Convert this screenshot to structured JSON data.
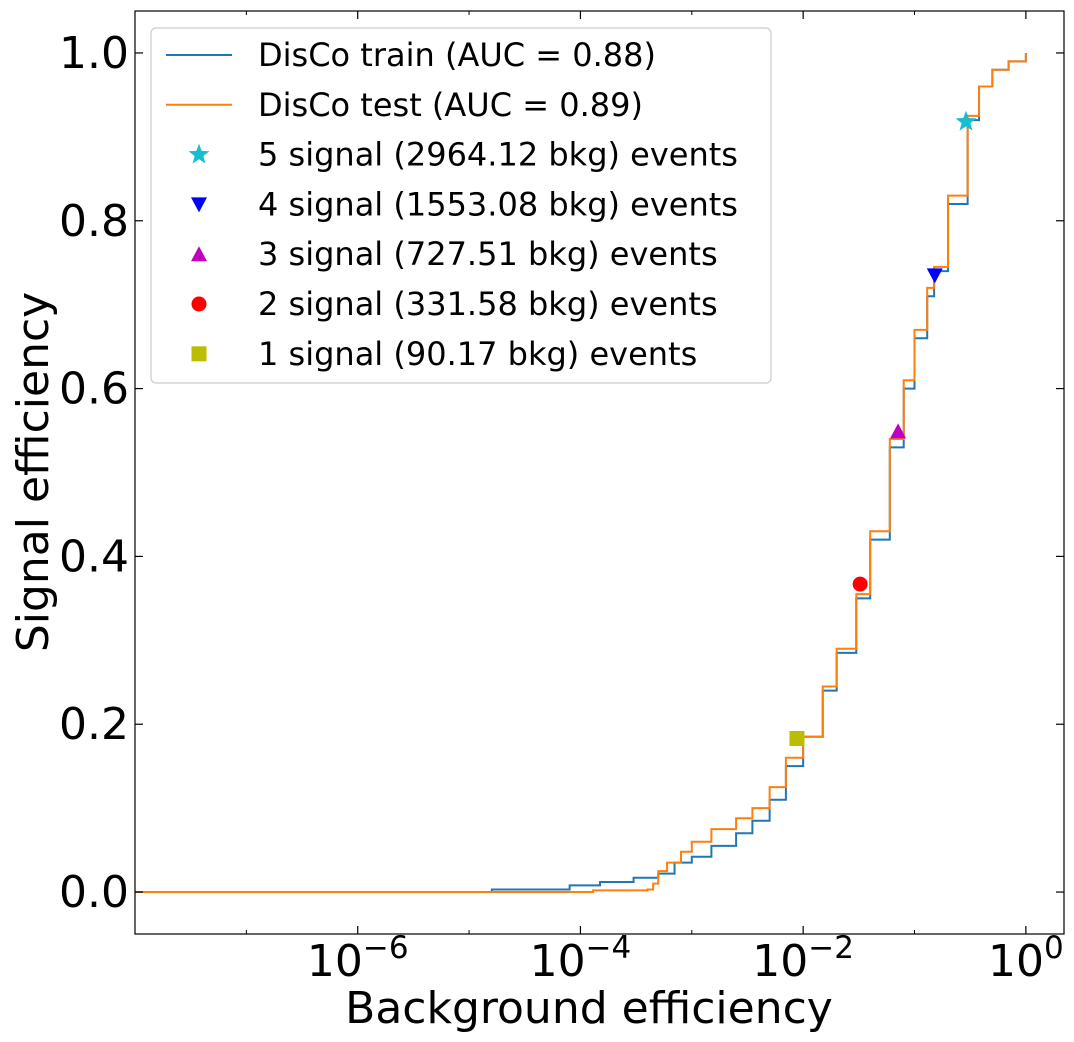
{
  "chart_data": {
    "type": "line",
    "xscale": "log",
    "xlim": [
      1e-08,
      2.2
    ],
    "ylim": [
      -0.05,
      1.05
    ],
    "xlabel": "Background efficiency",
    "ylabel": "Signal efficiency",
    "x_ticks": [
      {
        "value": 1e-06,
        "base": "10",
        "exp": "−6"
      },
      {
        "value": 0.0001,
        "base": "10",
        "exp": "−4"
      },
      {
        "value": 0.01,
        "base": "10",
        "exp": "−2"
      },
      {
        "value": 1,
        "base": "10",
        "exp": "0"
      }
    ],
    "y_ticks": [
      {
        "value": 0.0,
        "label": "0.0"
      },
      {
        "value": 0.2,
        "label": "0.2"
      },
      {
        "value": 0.4,
        "label": "0.4"
      },
      {
        "value": 0.6,
        "label": "0.6"
      },
      {
        "value": 0.8,
        "label": "0.8"
      },
      {
        "value": 1.0,
        "label": "1.0"
      }
    ],
    "grid": false,
    "legend_position": "upper-left",
    "series": [
      {
        "name": "DisCo train (AUC = 0.88)",
        "color": "#1f77b4",
        "points": [
          [
            1e-08,
            0.0
          ],
          [
            1.5e-05,
            0.0
          ],
          [
            1.6e-05,
            0.003
          ],
          [
            7e-05,
            0.003
          ],
          [
            8e-05,
            0.008
          ],
          [
            0.00015,
            0.012
          ],
          [
            0.0003,
            0.017
          ],
          [
            0.0005,
            0.022
          ],
          [
            0.0007,
            0.035
          ],
          [
            0.001,
            0.042
          ],
          [
            0.0015,
            0.055
          ],
          [
            0.0025,
            0.07
          ],
          [
            0.0035,
            0.085
          ],
          [
            0.005,
            0.11
          ],
          [
            0.007,
            0.15
          ],
          [
            0.01,
            0.185
          ],
          [
            0.015,
            0.24
          ],
          [
            0.02,
            0.285
          ],
          [
            0.03,
            0.35
          ],
          [
            0.04,
            0.42
          ],
          [
            0.06,
            0.53
          ],
          [
            0.08,
            0.6
          ],
          [
            0.1,
            0.66
          ],
          [
            0.13,
            0.71
          ],
          [
            0.15,
            0.74
          ],
          [
            0.2,
            0.82
          ],
          [
            0.3,
            0.92
          ],
          [
            0.38,
            0.96
          ],
          [
            0.5,
            0.98
          ],
          [
            0.7,
            0.99
          ],
          [
            1.0,
            1.0
          ]
        ]
      },
      {
        "name": "DisCo test (AUC = 0.89)",
        "color": "#ff7f0e",
        "points": [
          [
            1e-08,
            0.0
          ],
          [
            0.00012,
            0.0
          ],
          [
            0.00013,
            0.002
          ],
          [
            0.0004,
            0.003
          ],
          [
            0.00045,
            0.01
          ],
          [
            0.0005,
            0.025
          ],
          [
            0.0006,
            0.035
          ],
          [
            0.0008,
            0.048
          ],
          [
            0.001,
            0.06
          ],
          [
            0.0015,
            0.075
          ],
          [
            0.0025,
            0.088
          ],
          [
            0.0035,
            0.1
          ],
          [
            0.005,
            0.125
          ],
          [
            0.007,
            0.16
          ],
          [
            0.01,
            0.185
          ],
          [
            0.015,
            0.245
          ],
          [
            0.02,
            0.29
          ],
          [
            0.03,
            0.355
          ],
          [
            0.04,
            0.43
          ],
          [
            0.06,
            0.54
          ],
          [
            0.08,
            0.61
          ],
          [
            0.1,
            0.67
          ],
          [
            0.13,
            0.72
          ],
          [
            0.15,
            0.745
          ],
          [
            0.2,
            0.83
          ],
          [
            0.3,
            0.925
          ],
          [
            0.38,
            0.96
          ],
          [
            0.5,
            0.98
          ],
          [
            0.7,
            0.99
          ],
          [
            1.0,
            1.0
          ]
        ]
      }
    ],
    "markers": [
      {
        "name": "5 signal (2964.12 bkg) events",
        "shape": "star",
        "color": "#17becf",
        "x": 0.29,
        "y": 0.918
      },
      {
        "name": "4 signal (1553.08 bkg) events",
        "shape": "triangle-down",
        "color": "#0000ff",
        "x": 0.152,
        "y": 0.735
      },
      {
        "name": "3 signal (727.51 bkg) events",
        "shape": "triangle-up",
        "color": "#c000c0",
        "x": 0.0712,
        "y": 0.549
      },
      {
        "name": "2 signal (331.58 bkg) events",
        "shape": "circle",
        "color": "#ff0000",
        "x": 0.0325,
        "y": 0.367
      },
      {
        "name": "1 signal (90.17 bkg) events",
        "shape": "square",
        "color": "#bcbd00",
        "x": 0.0088,
        "y": 0.183
      }
    ]
  }
}
